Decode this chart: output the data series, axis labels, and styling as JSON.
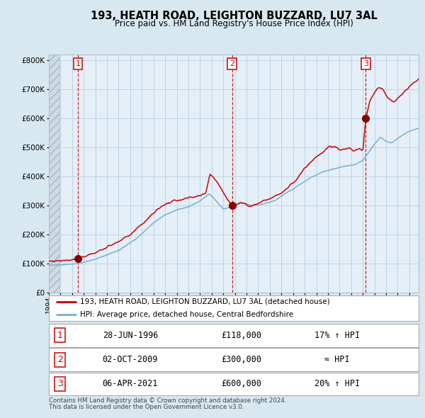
{
  "title": "193, HEATH ROAD, LEIGHTON BUZZARD, LU7 3AL",
  "subtitle": "Price paid vs. HM Land Registry's House Price Index (HPI)",
  "legend_line1": "193, HEATH ROAD, LEIGHTON BUZZARD, LU7 3AL (detached house)",
  "legend_line2": "HPI: Average price, detached house, Central Bedfordshire",
  "footer1": "Contains HM Land Registry data © Crown copyright and database right 2024.",
  "footer2": "This data is licensed under the Open Government Licence v3.0.",
  "sale_points": [
    {
      "num": 1,
      "date": "28-JUN-1996",
      "price": 118000,
      "note": "17% ↑ HPI",
      "x_year": 1996.49
    },
    {
      "num": 2,
      "date": "02-OCT-2009",
      "price": 300000,
      "note": "≈ HPI",
      "x_year": 2009.75
    },
    {
      "num": 3,
      "date": "06-APR-2021",
      "price": 600000,
      "note": "20% ↑ HPI",
      "x_year": 2021.26
    }
  ],
  "red_line_color": "#cc0000",
  "blue_line_color": "#7aaed0",
  "dot_color": "#880000",
  "dashed_line_color": "#cc0000",
  "grid_color": "#c0d4e4",
  "bg_color": "#d8e8f0",
  "plot_bg_color": "#e4eff8",
  "hatch_color": "#c0ccd8",
  "ylim": [
    0,
    820000
  ],
  "xlim_start": 1994.0,
  "xlim_end": 2025.8,
  "anchors_hpi": [
    [
      1994.0,
      93000
    ],
    [
      1995.0,
      96000
    ],
    [
      1996.5,
      100000
    ],
    [
      1998.0,
      115000
    ],
    [
      2000.0,
      145000
    ],
    [
      2001.5,
      185000
    ],
    [
      2003.0,
      240000
    ],
    [
      2004.0,
      268000
    ],
    [
      2005.0,
      285000
    ],
    [
      2006.0,
      295000
    ],
    [
      2007.0,
      315000
    ],
    [
      2007.8,
      340000
    ],
    [
      2008.5,
      310000
    ],
    [
      2009.0,
      288000
    ],
    [
      2009.75,
      295000
    ],
    [
      2010.5,
      308000
    ],
    [
      2011.5,
      300000
    ],
    [
      2012.5,
      305000
    ],
    [
      2013.5,
      318000
    ],
    [
      2014.5,
      345000
    ],
    [
      2015.5,
      370000
    ],
    [
      2016.5,
      395000
    ],
    [
      2017.5,
      415000
    ],
    [
      2018.5,
      425000
    ],
    [
      2019.5,
      435000
    ],
    [
      2020.3,
      440000
    ],
    [
      2021.0,
      455000
    ],
    [
      2021.8,
      500000
    ],
    [
      2022.5,
      535000
    ],
    [
      2023.0,
      520000
    ],
    [
      2023.5,
      515000
    ],
    [
      2024.0,
      530000
    ],
    [
      2024.5,
      545000
    ],
    [
      2025.0,
      555000
    ],
    [
      2025.8,
      565000
    ]
  ],
  "anchors_red": [
    [
      1994.0,
      108000
    ],
    [
      1995.0,
      110000
    ],
    [
      1996.0,
      114000
    ],
    [
      1996.49,
      118000
    ],
    [
      1997.0,
      124000
    ],
    [
      1998.0,
      138000
    ],
    [
      1999.0,
      155000
    ],
    [
      2000.0,
      175000
    ],
    [
      2001.0,
      200000
    ],
    [
      2002.0,
      235000
    ],
    [
      2003.0,
      275000
    ],
    [
      2004.0,
      305000
    ],
    [
      2005.0,
      318000
    ],
    [
      2006.0,
      325000
    ],
    [
      2006.8,
      330000
    ],
    [
      2007.5,
      340000
    ],
    [
      2007.85,
      410000
    ],
    [
      2008.3,
      390000
    ],
    [
      2008.8,
      360000
    ],
    [
      2009.3,
      325000
    ],
    [
      2009.75,
      300000
    ],
    [
      2010.2,
      305000
    ],
    [
      2010.8,
      310000
    ],
    [
      2011.2,
      295000
    ],
    [
      2011.8,
      305000
    ],
    [
      2012.5,
      315000
    ],
    [
      2013.0,
      325000
    ],
    [
      2013.8,
      340000
    ],
    [
      2014.5,
      358000
    ],
    [
      2015.3,
      390000
    ],
    [
      2016.0,
      430000
    ],
    [
      2016.8,
      460000
    ],
    [
      2017.3,
      475000
    ],
    [
      2017.8,
      490000
    ],
    [
      2018.2,
      505000
    ],
    [
      2018.8,
      498000
    ],
    [
      2019.2,
      492000
    ],
    [
      2019.8,
      498000
    ],
    [
      2020.2,
      488000
    ],
    [
      2020.7,
      496000
    ],
    [
      2021.0,
      488000
    ],
    [
      2021.26,
      600000
    ],
    [
      2021.6,
      660000
    ],
    [
      2022.0,
      690000
    ],
    [
      2022.4,
      705000
    ],
    [
      2022.8,
      695000
    ],
    [
      2023.2,
      668000
    ],
    [
      2023.6,
      655000
    ],
    [
      2024.0,
      668000
    ],
    [
      2024.5,
      688000
    ],
    [
      2025.0,
      708000
    ],
    [
      2025.8,
      735000
    ]
  ]
}
